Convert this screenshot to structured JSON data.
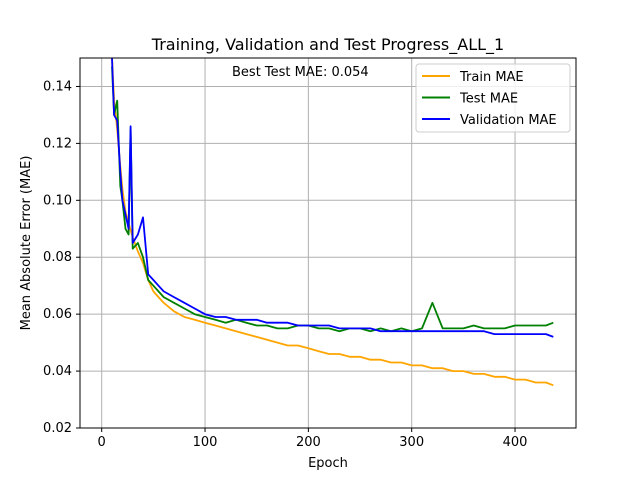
{
  "chart_data": {
    "type": "line",
    "title": "Training, Validation and Test Progress_ALL_1",
    "xlabel": "Epoch",
    "ylabel": "Mean Absolute Error (MAE)",
    "xlim": [
      -21,
      459
    ],
    "ylim": [
      0.02,
      0.15
    ],
    "xticks": [
      0,
      100,
      200,
      300,
      400
    ],
    "yticks": [
      0.02,
      0.04,
      0.06,
      0.08,
      0.1,
      0.12,
      0.14
    ],
    "ytick_labels": [
      "0.02",
      "0.04",
      "0.06",
      "0.08",
      "0.10",
      "0.12",
      "0.14"
    ],
    "grid": true,
    "legend_position": "top-right",
    "annotation": "Best Test MAE: 0.054",
    "series": [
      {
        "name": "Train MAE",
        "color": "#ffa500",
        "x": [
          10,
          12,
          15,
          18,
          20,
          23,
          26,
          30,
          35,
          40,
          45,
          50,
          55,
          60,
          70,
          80,
          90,
          100,
          110,
          120,
          130,
          140,
          150,
          160,
          170,
          180,
          190,
          200,
          210,
          220,
          230,
          240,
          250,
          260,
          270,
          280,
          290,
          300,
          310,
          320,
          330,
          340,
          350,
          360,
          370,
          380,
          390,
          400,
          410,
          420,
          430,
          437
        ],
        "y": [
          0.15,
          0.135,
          0.125,
          0.112,
          0.104,
          0.096,
          0.092,
          0.087,
          0.082,
          0.078,
          0.072,
          0.068,
          0.066,
          0.064,
          0.061,
          0.059,
          0.058,
          0.057,
          0.056,
          0.055,
          0.054,
          0.053,
          0.052,
          0.051,
          0.05,
          0.049,
          0.049,
          0.048,
          0.047,
          0.046,
          0.046,
          0.045,
          0.045,
          0.044,
          0.044,
          0.043,
          0.043,
          0.042,
          0.042,
          0.041,
          0.041,
          0.04,
          0.04,
          0.039,
          0.039,
          0.038,
          0.038,
          0.037,
          0.037,
          0.036,
          0.036,
          0.035
        ]
      },
      {
        "name": "Test MAE",
        "color": "#008000",
        "x": [
          10,
          12,
          15,
          18,
          20,
          23,
          26,
          28,
          30,
          35,
          40,
          45,
          50,
          55,
          60,
          70,
          80,
          90,
          100,
          110,
          120,
          130,
          140,
          150,
          160,
          170,
          180,
          190,
          200,
          210,
          220,
          230,
          240,
          250,
          260,
          270,
          280,
          290,
          300,
          310,
          320,
          330,
          340,
          350,
          360,
          370,
          380,
          390,
          400,
          410,
          420,
          430,
          437
        ],
        "y": [
          0.147,
          0.13,
          0.135,
          0.105,
          0.1,
          0.09,
          0.088,
          0.125,
          0.083,
          0.085,
          0.08,
          0.072,
          0.07,
          0.068,
          0.066,
          0.064,
          0.062,
          0.06,
          0.059,
          0.058,
          0.057,
          0.058,
          0.057,
          0.056,
          0.056,
          0.055,
          0.055,
          0.056,
          0.056,
          0.055,
          0.055,
          0.054,
          0.055,
          0.055,
          0.054,
          0.055,
          0.054,
          0.055,
          0.054,
          0.055,
          0.064,
          0.055,
          0.055,
          0.055,
          0.056,
          0.055,
          0.055,
          0.055,
          0.056,
          0.056,
          0.056,
          0.056,
          0.057
        ]
      },
      {
        "name": "Validation MAE",
        "color": "#0000ff",
        "x": [
          10,
          12,
          15,
          18,
          20,
          23,
          26,
          28,
          30,
          35,
          40,
          45,
          50,
          55,
          60,
          70,
          80,
          90,
          100,
          110,
          120,
          130,
          140,
          150,
          160,
          170,
          180,
          190,
          200,
          210,
          220,
          230,
          240,
          250,
          260,
          270,
          280,
          290,
          300,
          310,
          320,
          330,
          340,
          350,
          360,
          370,
          380,
          390,
          400,
          410,
          420,
          430,
          437
        ],
        "y": [
          0.15,
          0.13,
          0.128,
          0.11,
          0.1,
          0.095,
          0.09,
          0.126,
          0.085,
          0.088,
          0.094,
          0.074,
          0.072,
          0.07,
          0.068,
          0.066,
          0.064,
          0.062,
          0.06,
          0.059,
          0.059,
          0.058,
          0.058,
          0.058,
          0.057,
          0.057,
          0.057,
          0.056,
          0.056,
          0.056,
          0.056,
          0.055,
          0.055,
          0.055,
          0.055,
          0.054,
          0.054,
          0.054,
          0.054,
          0.054,
          0.054,
          0.054,
          0.054,
          0.054,
          0.054,
          0.054,
          0.053,
          0.053,
          0.053,
          0.053,
          0.053,
          0.053,
          0.052
        ]
      }
    ]
  }
}
